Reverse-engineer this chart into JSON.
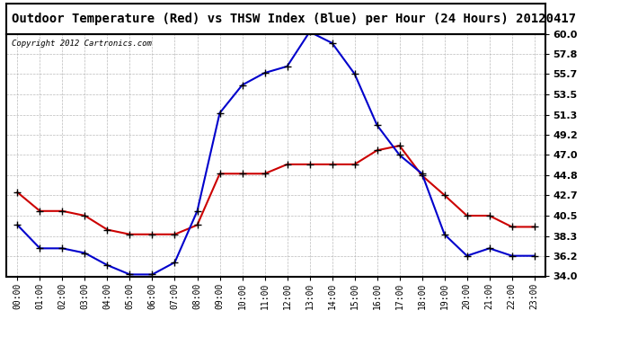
{
  "title": "Outdoor Temperature (Red) vs THSW Index (Blue) per Hour (24 Hours) 20120417",
  "copyright": "Copyright 2012 Cartronics.com",
  "hours": [
    "00:00",
    "01:00",
    "02:00",
    "03:00",
    "04:00",
    "05:00",
    "06:00",
    "07:00",
    "08:00",
    "09:00",
    "10:00",
    "11:00",
    "12:00",
    "13:00",
    "14:00",
    "15:00",
    "16:00",
    "17:00",
    "18:00",
    "19:00",
    "20:00",
    "21:00",
    "22:00",
    "23:00"
  ],
  "red_temp": [
    43.0,
    41.0,
    41.0,
    40.5,
    39.0,
    38.5,
    38.5,
    38.5,
    39.5,
    45.0,
    45.0,
    45.0,
    46.0,
    46.0,
    46.0,
    46.0,
    47.5,
    48.0,
    44.8,
    42.7,
    40.5,
    40.5,
    39.3,
    39.3
  ],
  "blue_thsw": [
    39.5,
    37.0,
    37.0,
    36.5,
    35.2,
    34.2,
    34.2,
    35.5,
    41.0,
    51.5,
    54.5,
    55.8,
    56.5,
    60.2,
    59.0,
    55.7,
    50.2,
    47.0,
    45.0,
    38.5,
    36.2,
    37.0,
    36.2,
    36.2
  ],
  "red_color": "#cc0000",
  "blue_color": "#0000cc",
  "bg_color": "#ffffff",
  "grid_color": "#aaaaaa",
  "ylim": [
    34.0,
    60.0
  ],
  "yticks": [
    34.0,
    36.2,
    38.3,
    40.5,
    42.7,
    44.8,
    47.0,
    49.2,
    51.3,
    53.5,
    55.7,
    57.8,
    60.0
  ],
  "title_fontsize": 10,
  "copyright_fontsize": 6.5,
  "marker": "+",
  "marker_size": 5,
  "line_width": 1.5
}
